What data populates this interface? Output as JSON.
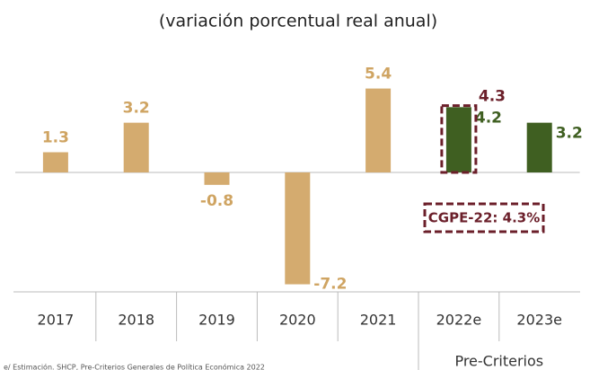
{
  "chart_data": {
    "type": "bar",
    "title": "(variación porcentual real anual)",
    "categories": [
      "2017",
      "2018",
      "2019",
      "2020",
      "2021",
      "2022e",
      "2023e"
    ],
    "values": [
      1.3,
      3.2,
      -0.8,
      -7.2,
      5.4,
      4.2,
      3.2
    ],
    "colors": [
      "#d4ab6f",
      "#d4ab6f",
      "#d4ab6f",
      "#d4ab6f",
      "#d4ab6f",
      "#3f5f21",
      "#3f5f21"
    ],
    "label_colors": [
      "#cfa462",
      "#cfa462",
      "#cfa462",
      "#cfa462",
      "#cfa462",
      "#3f5f21",
      "#3f5f21"
    ],
    "cgpe": {
      "value": 4.3,
      "label": "CGPE-22: 4.3%",
      "color": "#6b1f2a"
    },
    "group_label": "Pre-Criterios",
    "source": "e/ Estimación. SHCP, Pre-Criterios Generales de Política Económica 2022"
  }
}
